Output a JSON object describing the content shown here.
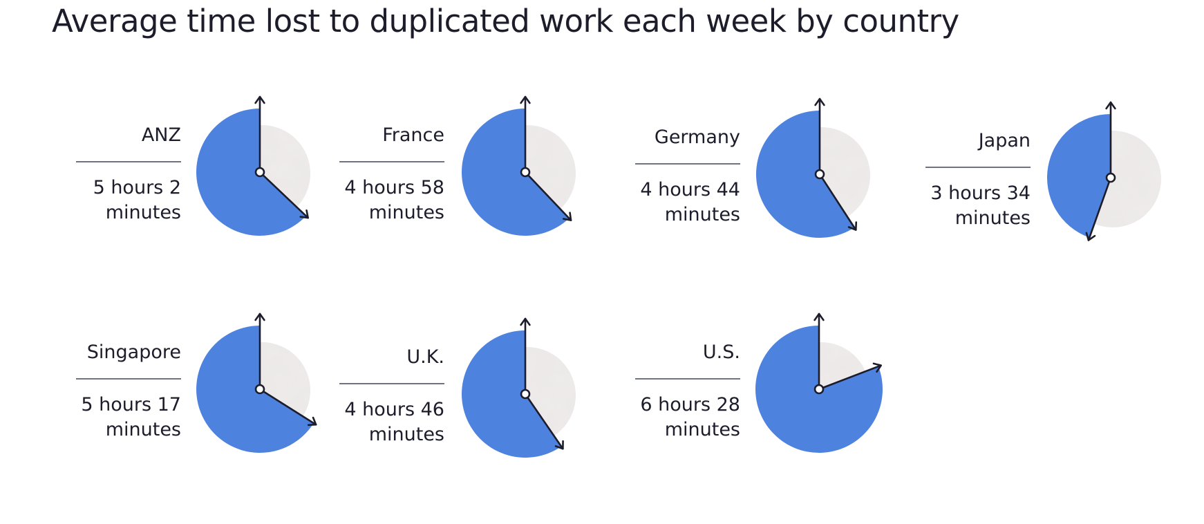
{
  "chart_data": {
    "type": "pie",
    "title": "Average time lost to duplicated work each week by country",
    "unit": "minutes",
    "full_circle_minutes": 480,
    "colors": {
      "filled": "#4e82df",
      "face": "#ebe8e7",
      "hand": "#1c1c2b",
      "divider": "#6b7480"
    },
    "items": [
      {
        "country": "ANZ",
        "time_line1": "5 hours 2",
        "time_line2": "minutes",
        "minutes": 302
      },
      {
        "country": "France",
        "time_line1": "4 hours 58",
        "time_line2": "minutes",
        "minutes": 298
      },
      {
        "country": "Germany",
        "time_line1": "4 hours 44",
        "time_line2": "minutes",
        "minutes": 284
      },
      {
        "country": "Japan",
        "time_line1": "3 hours 34",
        "time_line2": "minutes",
        "minutes": 214
      },
      {
        "country": "Singapore",
        "time_line1": "5 hours 17",
        "time_line2": "minutes",
        "minutes": 317
      },
      {
        "country": "U.K.",
        "time_line1": "4 hours 46",
        "time_line2": "minutes",
        "minutes": 286
      },
      {
        "country": "U.S.",
        "time_line1": "6 hours 28",
        "time_line2": "minutes",
        "minutes": 388
      }
    ]
  }
}
